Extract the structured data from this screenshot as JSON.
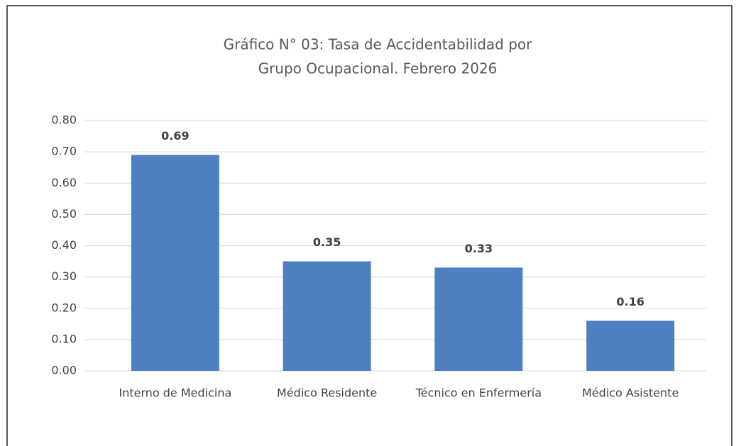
{
  "chart_data": {
    "type": "bar",
    "title": [
      "Gráfico N° 03: Tasa de Accidentabilidad por",
      "Grupo Ocupacional.  Febrero 2026"
    ],
    "categories": [
      "Interno de Medicina",
      "Médico Residente",
      "Técnico en Enfermería",
      "Médico Asistente"
    ],
    "values": [
      0.69,
      0.35,
      0.33,
      0.16
    ],
    "color": "#4e7fc0",
    "ylim": [
      0,
      0.8
    ],
    "yticks": [
      {
        "value": 0,
        "label": "0.00"
      },
      {
        "value": 0.1,
        "label": "0.10"
      },
      {
        "value": 0.2,
        "label": "0.20"
      },
      {
        "value": 0.3,
        "label": "0.30"
      },
      {
        "value": 0.4,
        "label": "0.40"
      },
      {
        "value": 0.5,
        "label": "0.50"
      },
      {
        "value": 0.6,
        "label": "0.60"
      },
      {
        "value": 0.7,
        "label": "0.70"
      },
      {
        "value": 0.8,
        "label": "0.80"
      }
    ],
    "grid": true
  }
}
